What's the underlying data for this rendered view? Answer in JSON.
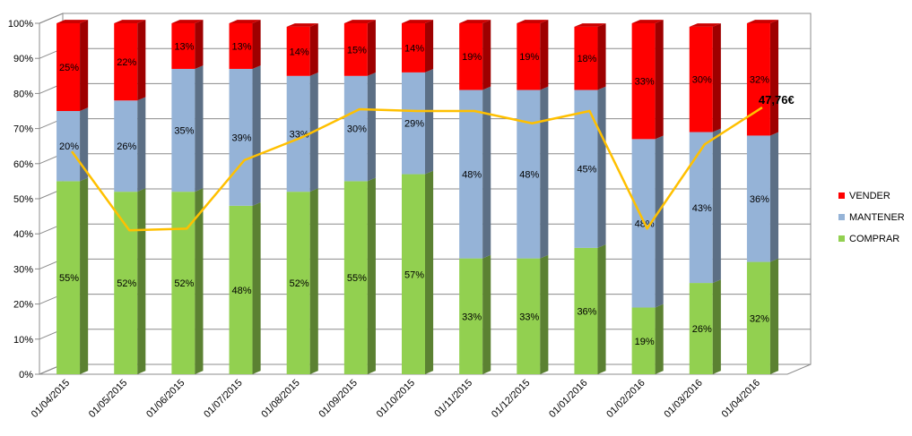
{
  "chart_data": {
    "type": "bar",
    "stacked": true,
    "percent_stacked": true,
    "three_d": true,
    "categories": [
      "01/04/2015",
      "01/05/2015",
      "01/06/2015",
      "01/07/2015",
      "01/08/2015",
      "01/09/2015",
      "01/10/2015",
      "01/11/2015",
      "01/12/2015",
      "01/01/2016",
      "01/02/2016",
      "01/03/2016",
      "01/04/2016"
    ],
    "series": [
      {
        "name": "COMPRAR",
        "color": "#92d050",
        "values": [
          55,
          52,
          52,
          48,
          52,
          55,
          57,
          33,
          33,
          36,
          19,
          26,
          32
        ]
      },
      {
        "name": "MANTENER",
        "color": "#95b3d7",
        "values": [
          20,
          26,
          35,
          39,
          33,
          30,
          29,
          48,
          48,
          45,
          48,
          43,
          36
        ]
      },
      {
        "name": "VENDER",
        "color": "#ff0000",
        "values": [
          25,
          22,
          13,
          13,
          14,
          15,
          14,
          19,
          19,
          18,
          33,
          30,
          32
        ]
      }
    ],
    "segment_labels": {
      "COMPRAR": [
        "55%",
        "52%",
        "52%",
        "48%",
        "52%",
        "55%",
        "57%",
        "33%",
        "33%",
        "36%",
        "19%",
        "26%",
        "32%"
      ],
      "MANTENER": [
        "20%",
        "26%",
        "35%",
        "39%",
        "33%",
        "30%",
        "29%",
        "48%",
        "48%",
        "45%",
        "48%",
        "43%",
        "36%"
      ],
      "VENDER": [
        "25%",
        "22%",
        "13%",
        "13%",
        "14%",
        "15%",
        "14%",
        "19%",
        "19%",
        "18%",
        "33%",
        "30%",
        "32%"
      ]
    },
    "price_line": {
      "color": "#ffc000",
      "values_pct_axis": [
        63.5,
        41,
        41.5,
        61,
        67.5,
        75.5,
        75,
        75,
        71.5,
        75,
        41.5,
        65.5,
        76
      ],
      "end_label": "47,76€"
    },
    "y_axis": {
      "min": 0,
      "max": 100,
      "step": 10,
      "tick_labels": [
        "0%",
        "10%",
        "20%",
        "30%",
        "40%",
        "50%",
        "60%",
        "70%",
        "80%",
        "90%",
        "100%"
      ]
    },
    "grid": true,
    "legend": {
      "position": "right",
      "order": [
        "VENDER",
        "MANTENER",
        "COMPRAR"
      ]
    }
  }
}
